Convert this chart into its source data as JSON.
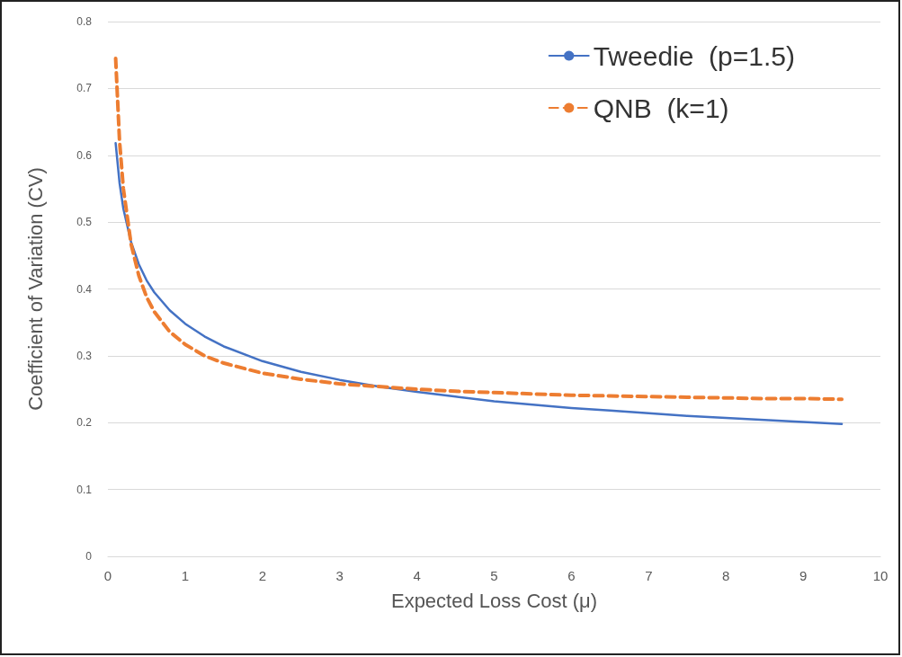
{
  "chart_data": {
    "type": "line",
    "xlabel": "Expected Loss Cost (μ)",
    "ylabel": "Coefficient of Variation (CV)",
    "x": [
      0.1,
      0.15,
      0.2,
      0.3,
      0.4,
      0.5,
      0.6,
      0.8,
      1,
      1.25,
      1.5,
      2,
      2.5,
      3,
      3.5,
      4,
      4.5,
      5,
      5.5,
      6,
      6.5,
      7,
      7.5,
      8,
      8.5,
      9,
      9.5
    ],
    "series": [
      {
        "name": "Tweedie  (p=1.5)",
        "color": "#4472c4",
        "line_style": "solid",
        "values": [
          0.618,
          0.559,
          0.52,
          0.47,
          0.437,
          0.413,
          0.395,
          0.368,
          0.348,
          0.329,
          0.314,
          0.292,
          0.276,
          0.264,
          0.254,
          0.246,
          0.239,
          0.232,
          0.227,
          0.222,
          0.218,
          0.214,
          0.21,
          0.207,
          0.204,
          0.201,
          0.198
        ]
      },
      {
        "name": "QNB  (k=1)",
        "color": "#ed7d31",
        "line_style": "dashed",
        "values": [
          0.745,
          0.622,
          0.55,
          0.467,
          0.42,
          0.388,
          0.366,
          0.336,
          0.317,
          0.3,
          0.289,
          0.274,
          0.265,
          0.258,
          0.254,
          0.25,
          0.247,
          0.245,
          0.243,
          0.241,
          0.24,
          0.239,
          0.238,
          0.237,
          0.236,
          0.236,
          0.235
        ]
      }
    ],
    "xlim": [
      0,
      10
    ],
    "xticks": [
      0,
      1,
      2,
      3,
      4,
      5,
      6,
      7,
      8,
      9,
      10
    ],
    "ylim": [
      0,
      0.8
    ],
    "yticks": [
      0,
      0.1,
      0.2,
      0.3,
      0.4,
      0.5,
      0.6,
      0.7,
      0.8
    ],
    "grid": "y",
    "legend": "top right",
    "marker": "none"
  }
}
